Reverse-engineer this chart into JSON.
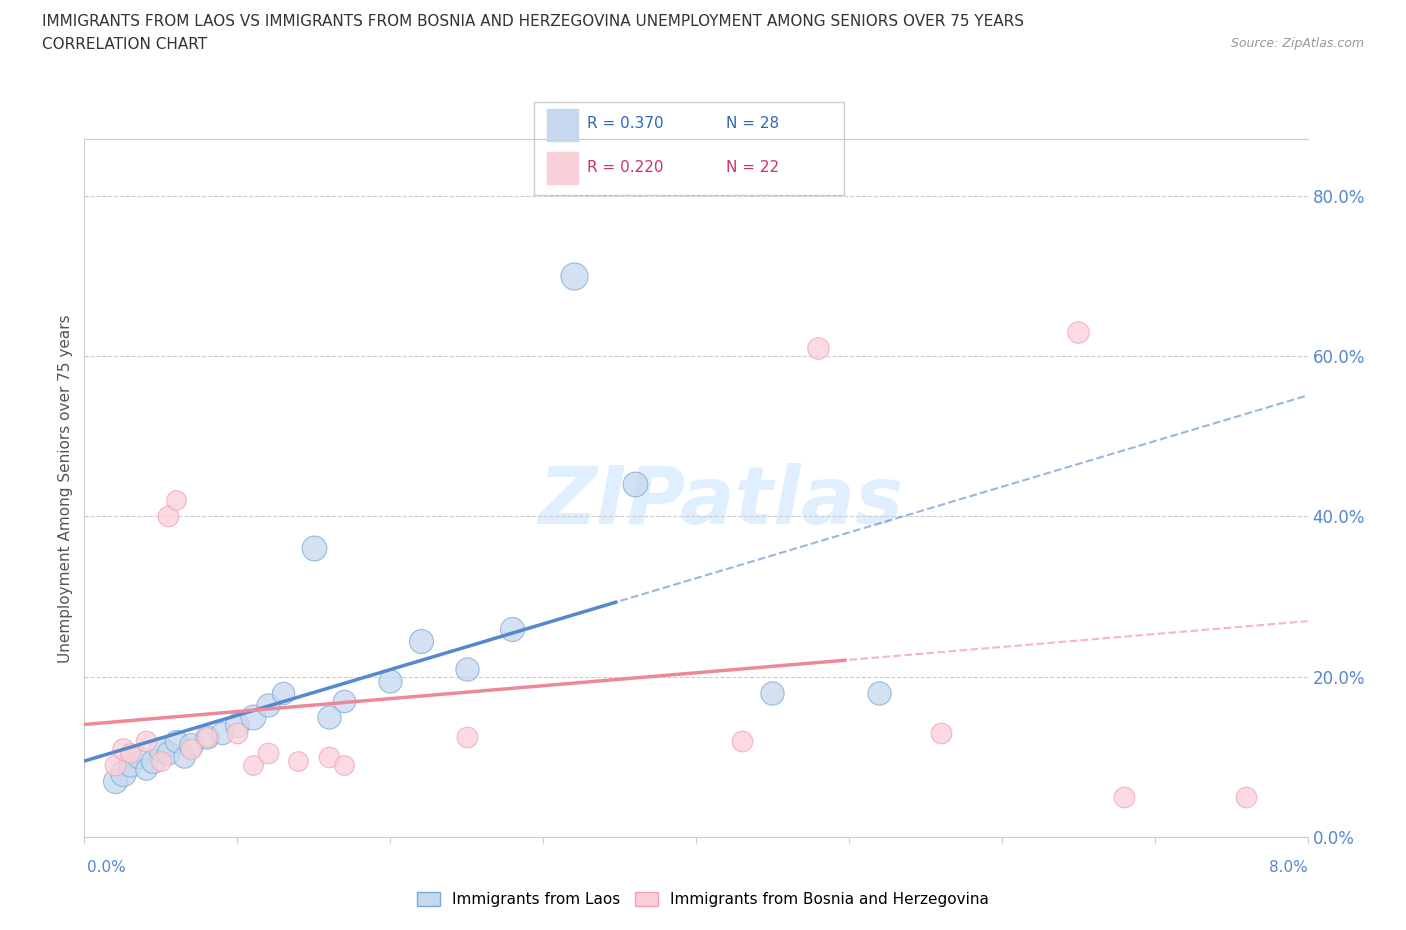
{
  "title_line1": "IMMIGRANTS FROM LAOS VS IMMIGRANTS FROM BOSNIA AND HERZEGOVINA UNEMPLOYMENT AMONG SENIORS OVER 75 YEARS",
  "title_line2": "CORRELATION CHART",
  "source": "Source: ZipAtlas.com",
  "ylabel": "Unemployment Among Seniors over 75 years",
  "ytick_vals": [
    0,
    20,
    40,
    60,
    80
  ],
  "ytick_labels": [
    "0.0%",
    "20.0%",
    "40.0%",
    "60.0%",
    "80.0%"
  ],
  "xrange": [
    0.0,
    8.0
  ],
  "yrange": [
    0.0,
    87.0
  ],
  "legend_blue_r": "R = 0.370",
  "legend_blue_n": "N = 28",
  "legend_pink_r": "R = 0.220",
  "legend_pink_n": "N = 22",
  "label_blue": "Immigrants from Laos",
  "label_pink": "Immigrants from Bosnia and Herzegovina",
  "blue_color": "#7aaad4",
  "pink_color": "#f4a0b0",
  "blue_fill": "#c5d8ee",
  "pink_fill": "#fad0d8",
  "blue_line_color": "#5588cc",
  "pink_line_color": "#ee8899",
  "watermark_color": "#d8e8f0",
  "blue_points": [
    [
      0.2,
      7.0,
      300
    ],
    [
      0.25,
      8.0,
      350
    ],
    [
      0.3,
      9.0,
      280
    ],
    [
      0.35,
      10.0,
      260
    ],
    [
      0.4,
      8.5,
      240
    ],
    [
      0.45,
      9.5,
      300
    ],
    [
      0.5,
      11.0,
      320
    ],
    [
      0.55,
      10.5,
      280
    ],
    [
      0.6,
      12.0,
      260
    ],
    [
      0.65,
      10.0,
      240
    ],
    [
      0.7,
      11.5,
      300
    ],
    [
      0.8,
      12.5,
      280
    ],
    [
      0.9,
      13.0,
      260
    ],
    [
      1.0,
      14.0,
      300
    ],
    [
      1.1,
      15.0,
      320
    ],
    [
      1.2,
      16.5,
      280
    ],
    [
      1.3,
      18.0,
      260
    ],
    [
      1.5,
      36.0,
      320
    ],
    [
      1.6,
      15.0,
      280
    ],
    [
      1.7,
      17.0,
      260
    ],
    [
      2.0,
      19.5,
      280
    ],
    [
      2.2,
      24.5,
      300
    ],
    [
      2.5,
      21.0,
      280
    ],
    [
      2.8,
      26.0,
      300
    ],
    [
      3.2,
      70.0,
      380
    ],
    [
      3.6,
      44.0,
      320
    ],
    [
      4.5,
      18.0,
      280
    ],
    [
      5.2,
      18.0,
      280
    ]
  ],
  "pink_points": [
    [
      0.2,
      9.0,
      220
    ],
    [
      0.25,
      11.0,
      240
    ],
    [
      0.3,
      10.5,
      200
    ],
    [
      0.4,
      12.0,
      220
    ],
    [
      0.5,
      9.5,
      200
    ],
    [
      0.55,
      40.0,
      220
    ],
    [
      0.6,
      42.0,
      200
    ],
    [
      0.7,
      11.0,
      220
    ],
    [
      0.8,
      12.5,
      200
    ],
    [
      1.0,
      13.0,
      220
    ],
    [
      1.1,
      9.0,
      200
    ],
    [
      1.2,
      10.5,
      220
    ],
    [
      1.4,
      9.5,
      200
    ],
    [
      1.6,
      10.0,
      220
    ],
    [
      1.7,
      9.0,
      200
    ],
    [
      2.5,
      12.5,
      220
    ],
    [
      4.3,
      12.0,
      220
    ],
    [
      4.8,
      61.0,
      240
    ],
    [
      5.6,
      13.0,
      220
    ],
    [
      6.5,
      63.0,
      240
    ],
    [
      6.8,
      5.0,
      220
    ],
    [
      7.6,
      5.0,
      220
    ]
  ],
  "xtick_positions": [
    0,
    1,
    2,
    3,
    4,
    5,
    6,
    7,
    8
  ]
}
